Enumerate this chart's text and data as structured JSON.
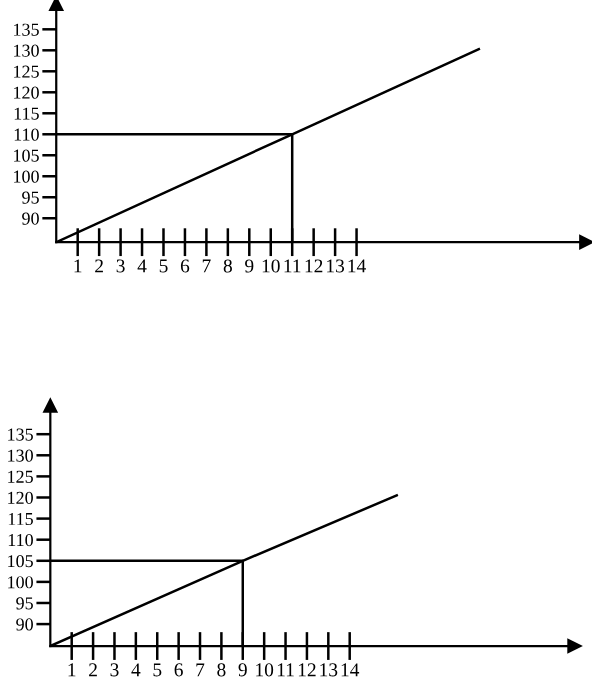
{
  "chart_data": [
    {
      "type": "line",
      "xlim": [
        0,
        24.7
      ],
      "ylim": [
        84.3,
        141
      ],
      "xticks": [
        1,
        2,
        3,
        4,
        5,
        6,
        7,
        8,
        9,
        10,
        11,
        12,
        13,
        14
      ],
      "yticks": [
        90,
        95,
        100,
        105,
        110,
        115,
        120,
        125,
        130,
        135
      ],
      "grid": false,
      "legend": false,
      "marker": "none",
      "series": [
        {
          "color": "#000000",
          "x": [
            0,
            11,
            19.7
          ],
          "values": [
            84.3,
            110,
            130.3
          ]
        },
        {
          "color": "#000000",
          "x": [
            0,
            11,
            11
          ],
          "values": [
            110,
            110,
            84.3
          ]
        }
      ]
    },
    {
      "type": "line",
      "xlim": [
        0,
        24.5
      ],
      "ylim": [
        84.8,
        141.7
      ],
      "xticks": [
        1,
        2,
        3,
        4,
        5,
        6,
        7,
        8,
        9,
        10,
        11,
        12,
        13,
        14
      ],
      "yticks": [
        90,
        95,
        100,
        105,
        110,
        115,
        120,
        125,
        130,
        135
      ],
      "grid": false,
      "legend": false,
      "marker": "none",
      "series": [
        {
          "color": "#000000",
          "x": [
            0,
            9,
            16.2
          ],
          "values": [
            84.8,
            105,
            120.5
          ]
        },
        {
          "color": "#000000",
          "x": [
            0,
            9,
            9
          ],
          "values": [
            105,
            105,
            84.8
          ]
        }
      ]
    }
  ]
}
